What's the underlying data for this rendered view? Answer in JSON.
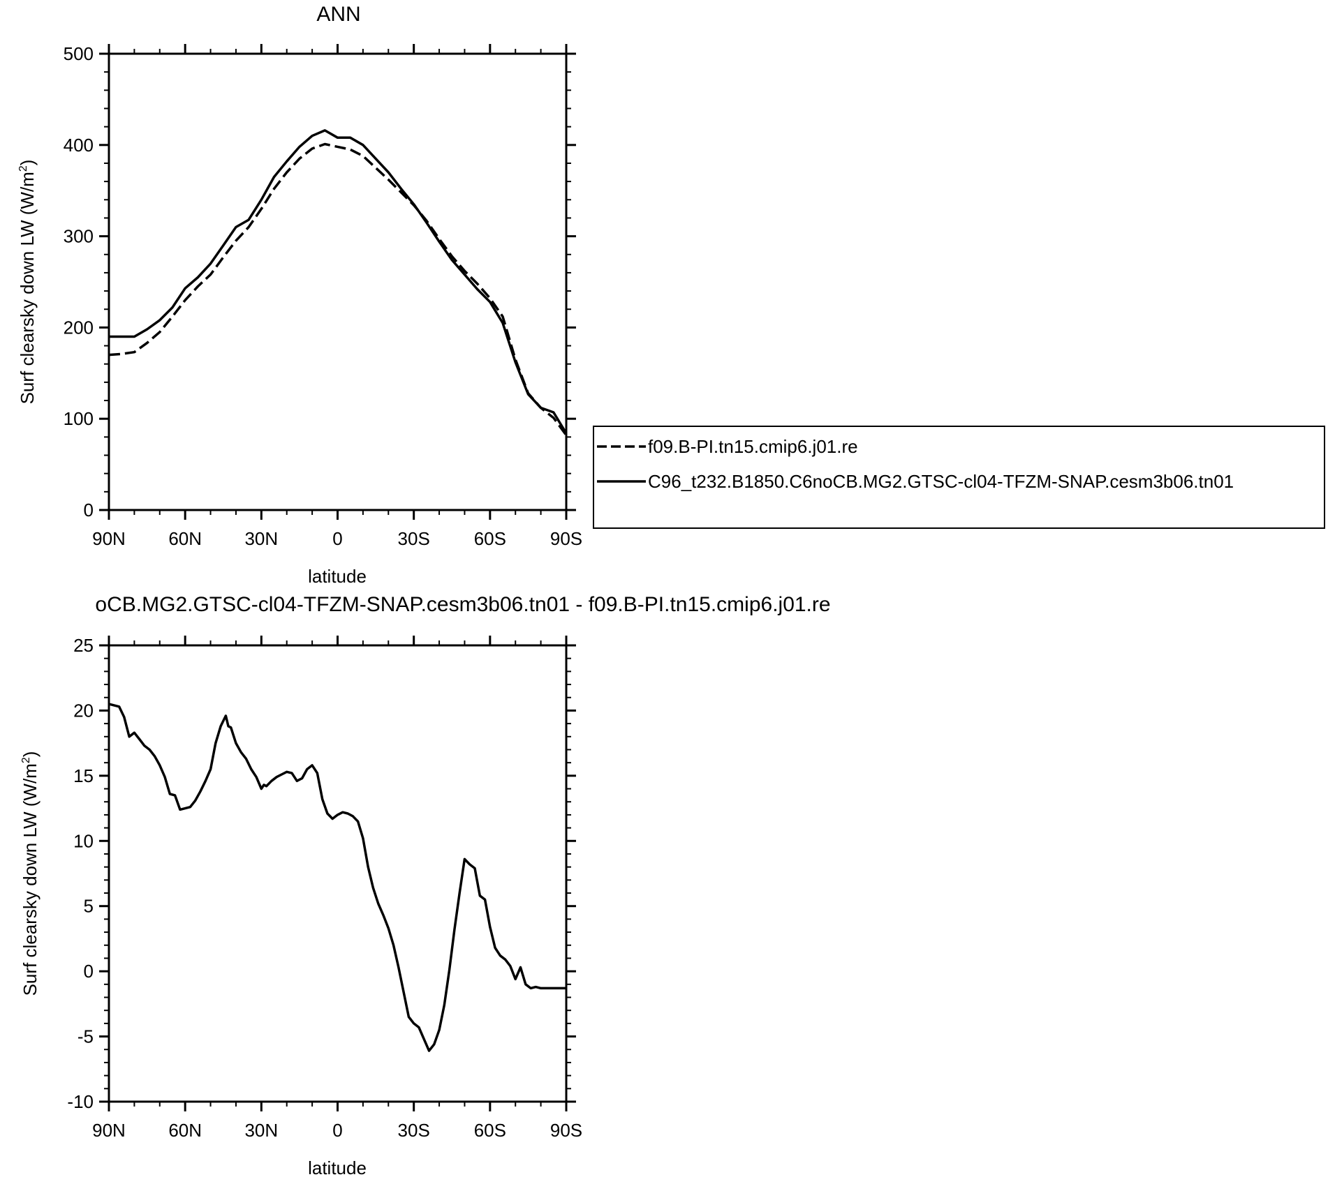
{
  "chart_data": [
    {
      "type": "line",
      "title": "ANN",
      "xlabel": "latitude",
      "ylabel": "Surf clearsky down LW (W/m",
      "ylabel_sup": "2",
      "ylabel_close": ")",
      "xlim": [
        -90,
        90
      ],
      "ylim": [
        0,
        500
      ],
      "yticks": [
        "0",
        "100",
        "200",
        "300",
        "400",
        "500"
      ],
      "xticks": [
        "90N",
        "60N",
        "30N",
        "0",
        "30S",
        "60S",
        "90S"
      ],
      "grid": false,
      "legend": "right",
      "series": [
        {
          "name": "f09.B-PI.tn15.cmip6.j01.re",
          "dash": "dashed",
          "x": [
            -90,
            -85,
            -80,
            -75,
            -70,
            -65,
            -60,
            -55,
            -50,
            -45,
            -40,
            -35,
            -30,
            -25,
            -20,
            -15,
            -10,
            -5,
            0,
            5,
            10,
            15,
            20,
            25,
            30,
            35,
            40,
            45,
            50,
            55,
            60,
            65,
            70,
            75,
            80,
            85,
            90
          ],
          "y": [
            170,
            171,
            173,
            183,
            195,
            212,
            230,
            245,
            258,
            277,
            295,
            310,
            330,
            352,
            370,
            385,
            396,
            401,
            398,
            395,
            388,
            375,
            362,
            348,
            334,
            317,
            297,
            278,
            262,
            248,
            232,
            212,
            165,
            128,
            112,
            101,
            82
          ]
        },
        {
          "name": "C96_t232.B1850.C6noCB.MG2.GTSC-cl04-TFZM-SNAP.cesm3b06.tn01",
          "dash": "solid",
          "x": [
            -90,
            -85,
            -80,
            -75,
            -70,
            -65,
            -60,
            -55,
            -50,
            -45,
            -40,
            -35,
            -30,
            -25,
            -20,
            -15,
            -10,
            -5,
            0,
            5,
            10,
            15,
            20,
            25,
            30,
            35,
            40,
            45,
            50,
            55,
            60,
            65,
            70,
            75,
            80,
            85,
            90
          ],
          "y": [
            190,
            190,
            190,
            198,
            208,
            222,
            243,
            255,
            270,
            290,
            310,
            318,
            340,
            365,
            382,
            398,
            410,
            416,
            408,
            408,
            400,
            385,
            370,
            352,
            335,
            315,
            294,
            274,
            258,
            242,
            228,
            205,
            162,
            127,
            112,
            107,
            84
          ]
        }
      ]
    },
    {
      "type": "line",
      "title": "oCB.MG2.GTSC-cl04-TFZM-SNAP.cesm3b06.tn01 - f09.B-PI.tn15.cmip6.j01.re",
      "xlabel": "latitude",
      "ylabel": "Surf clearsky down LW (W/m",
      "ylabel_sup": "2",
      "ylabel_close": ")",
      "xlim": [
        -90,
        90
      ],
      "ylim": [
        -10,
        25
      ],
      "yticks": [
        "-10",
        "-5",
        "0",
        "5",
        "10",
        "15",
        "20",
        "25"
      ],
      "xticks": [
        "90N",
        "60N",
        "30N",
        "0",
        "30S",
        "60S",
        "90S"
      ],
      "grid": false,
      "series": [
        {
          "dash": "solid",
          "x": [
            -90,
            -86,
            -84,
            -82,
            -80,
            -78,
            -76,
            -74,
            -72,
            -70,
            -68,
            -66,
            -64,
            -62,
            -60,
            -58,
            -56,
            -54,
            -52,
            -50,
            -48,
            -46,
            -44,
            -43,
            -42,
            -40,
            -38,
            -36,
            -34,
            -32,
            -30,
            -29,
            -28,
            -26,
            -24,
            -22,
            -20,
            -18,
            -16,
            -14,
            -12,
            -10,
            -8,
            -6,
            -4,
            -2,
            0,
            2,
            4,
            6,
            8,
            10,
            12,
            14,
            16,
            18,
            20,
            22,
            24,
            26,
            28,
            30,
            32,
            34,
            36,
            38,
            40,
            42,
            44,
            46,
            48,
            50,
            52,
            54,
            56,
            58,
            60,
            62,
            64,
            66,
            68,
            70,
            72,
            74,
            76,
            78,
            80,
            82,
            84,
            86,
            88,
            90
          ],
          "y": [
            20.5,
            20.3,
            19.5,
            18.0,
            18.3,
            17.8,
            17.3,
            17.0,
            16.5,
            15.8,
            14.9,
            13.6,
            13.5,
            12.4,
            12.5,
            12.6,
            13.1,
            13.8,
            14.6,
            15.5,
            17.5,
            18.8,
            19.6,
            18.8,
            18.7,
            17.5,
            16.8,
            16.3,
            15.5,
            14.9,
            14.0,
            14.3,
            14.2,
            14.6,
            14.9,
            15.1,
            15.3,
            15.2,
            14.6,
            14.8,
            15.5,
            15.8,
            15.2,
            13.2,
            12.1,
            11.7,
            12.0,
            12.2,
            12.1,
            11.9,
            11.5,
            10.2,
            8.0,
            6.4,
            5.2,
            4.3,
            3.3,
            2.0,
            0.3,
            -1.6,
            -3.5,
            -4.0,
            -4.3,
            -5.2,
            -6.1,
            -5.6,
            -4.5,
            -2.6,
            0.1,
            3.2,
            6.0,
            8.6,
            8.2,
            7.9,
            5.8,
            5.5,
            3.4,
            1.8,
            1.2,
            0.9,
            0.4,
            -0.6,
            0.3,
            -1.0,
            -1.3,
            -1.2,
            -1.3,
            -1.3,
            -1.3,
            -1.3,
            -1.3,
            -1.3
          ],
          "note": ""
        }
      ]
    }
  ]
}
